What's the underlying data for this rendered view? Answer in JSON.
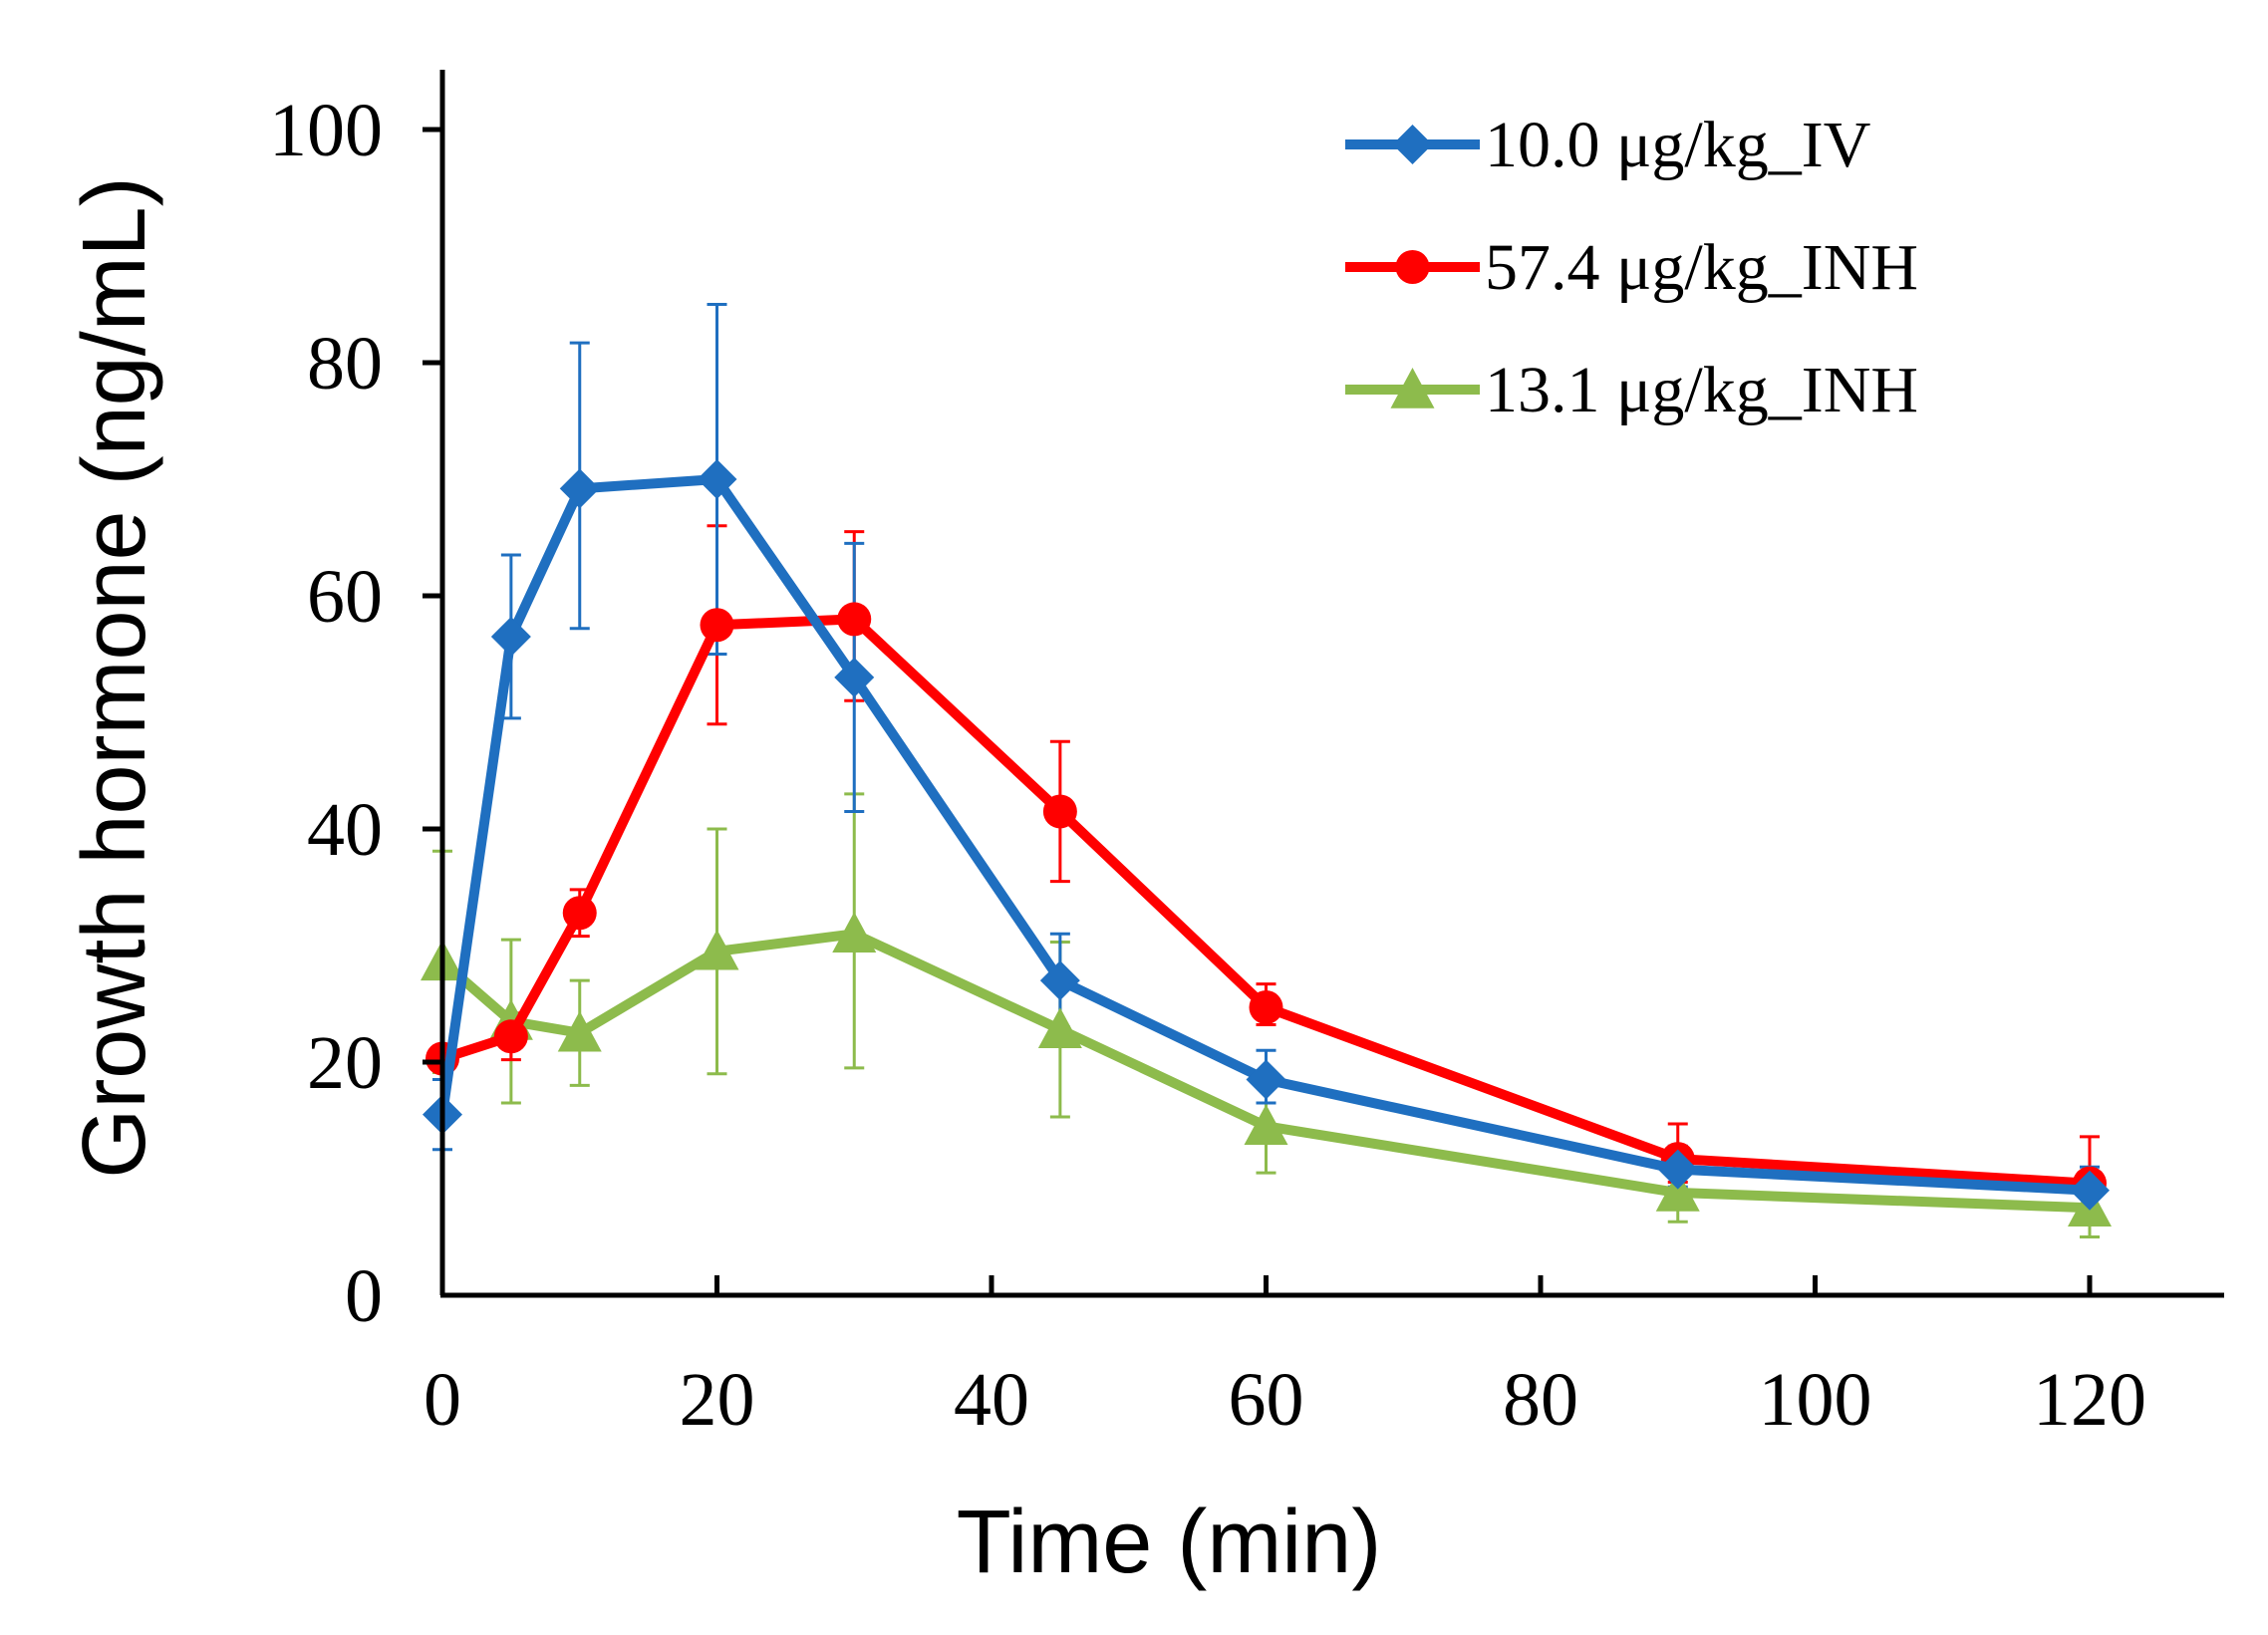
{
  "chart_data": {
    "type": "line",
    "title": "",
    "xlabel": "Time (min)",
    "ylabel": "Growth hormone (ng/mL)",
    "xlim": [
      0,
      130
    ],
    "ylim": [
      0,
      100
    ],
    "xticks": [
      0,
      20,
      40,
      60,
      80,
      100,
      120
    ],
    "yticks": [
      0,
      20,
      40,
      60,
      80,
      100
    ],
    "grid": false,
    "legend_position": "top-right",
    "x": [
      0,
      5,
      10,
      20,
      30,
      45,
      60,
      90,
      120
    ],
    "series": [
      {
        "name": "10.0 μg/kg_IV",
        "color": "#1f6fc0",
        "marker": "diamond",
        "values": [
          15.5,
          56.5,
          69.2,
          70.0,
          53.0,
          27.0,
          18.5,
          10.8,
          9.0
        ],
        "err_low": [
          3.0,
          7.0,
          12.0,
          15.0,
          11.5,
          4.0,
          2.0,
          1.5,
          2.0
        ],
        "err_high": [
          3.0,
          7.0,
          12.5,
          15.0,
          11.5,
          4.0,
          2.5,
          2.0,
          2.0
        ]
      },
      {
        "name": "57.4 μg/kg_INH",
        "color": "#ff0000",
        "marker": "circle",
        "values": [
          20.3,
          22.2,
          32.8,
          57.5,
          58.0,
          41.5,
          24.7,
          11.7,
          9.6
        ],
        "err_low": [
          1.0,
          2.0,
          2.0,
          8.5,
          7.0,
          6.0,
          1.5,
          2.0,
          3.5
        ],
        "err_high": [
          1.0,
          2.0,
          2.0,
          8.5,
          7.5,
          6.0,
          2.0,
          3.0,
          4.0
        ]
      },
      {
        "name": "13.1 μg/kg_INH",
        "color": "#8dbb4c",
        "marker": "triangle",
        "values": [
          28.6,
          23.5,
          22.5,
          29.5,
          31.0,
          22.8,
          14.5,
          8.8,
          7.5
        ],
        "err_low": [
          9.5,
          7.0,
          4.5,
          10.5,
          11.5,
          7.5,
          4.0,
          2.5,
          2.5
        ],
        "err_high": [
          9.5,
          7.0,
          4.5,
          10.5,
          12.0,
          7.5,
          4.0,
          2.5,
          2.5
        ]
      }
    ]
  }
}
